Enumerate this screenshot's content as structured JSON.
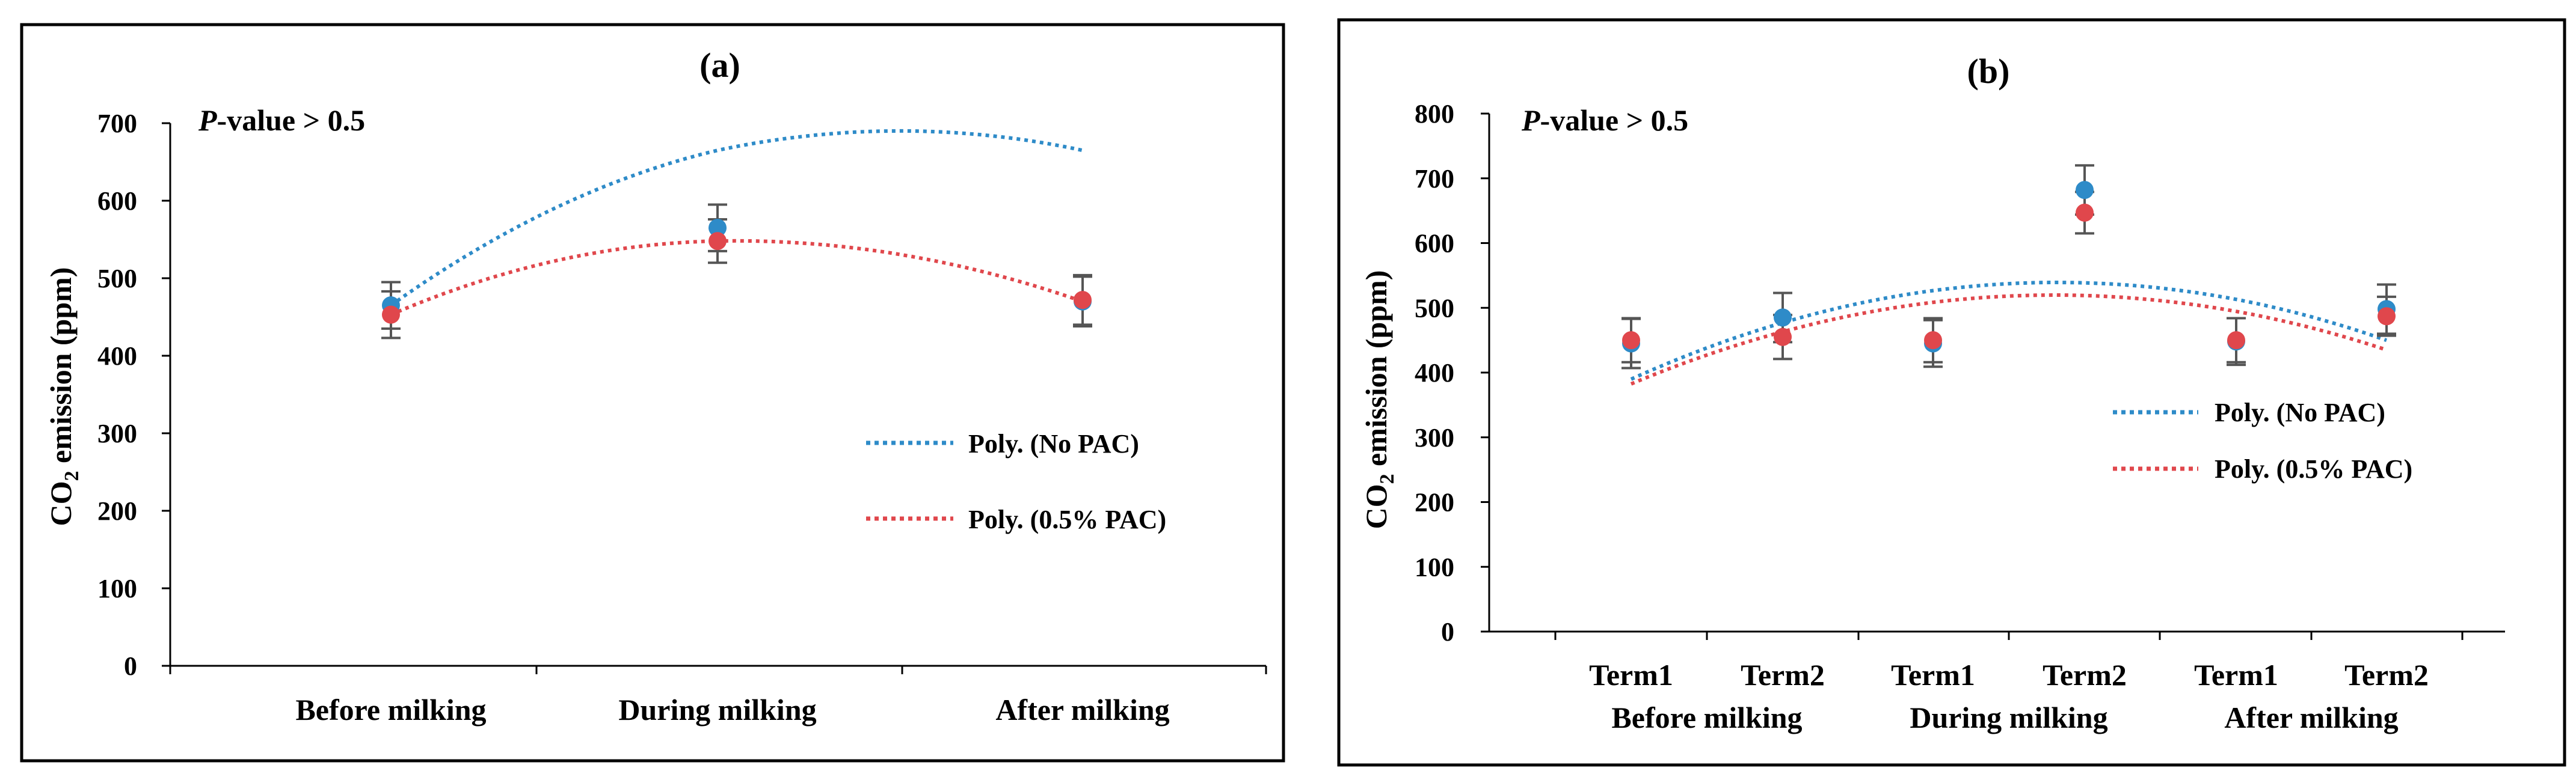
{
  "colors": {
    "no_pac": "#2E8BC8",
    "pac": "#E0474C",
    "error_bar": "#555555",
    "frame": "#000000"
  },
  "p_value": {
    "italic": "P",
    "rest": "-value > 0.5"
  },
  "chart_data": [
    {
      "type": "scatter",
      "panel_label": "(a)",
      "ylabel": {
        "main": "CO",
        "sub": "2",
        "rest": " emission (ppm)"
      },
      "ylim": [
        0,
        700
      ],
      "yticks": [
        "0",
        "100",
        "200",
        "300",
        "400",
        "500",
        "600",
        "700"
      ],
      "categories": [
        "Before milking",
        "During  milking",
        "After milking"
      ],
      "series": [
        {
          "name": "No PAC",
          "values": [
            465,
            565,
            470
          ],
          "errors": [
            30,
            30,
            32
          ]
        },
        {
          "name": "0.5% PAC",
          "values": [
            453,
            548,
            472
          ],
          "errors": [
            30,
            28,
            32
          ]
        }
      ],
      "trendlines": [
        {
          "label": "Poly. (No PAC)",
          "coeffs": [
            -100,
            500,
            65
          ]
        },
        {
          "label": "Poly. (0.5% PAC)",
          "coeffs": [
            -86.5,
            354.5,
            185
          ]
        }
      ],
      "legend_position": "right"
    },
    {
      "type": "scatter",
      "panel_label": "(b)",
      "ylabel": {
        "main": "CO",
        "sub": "2",
        "rest": " emission (ppm)"
      },
      "ylim": [
        0,
        800
      ],
      "yticks": [
        "0",
        "100",
        "200",
        "300",
        "400",
        "500",
        "600",
        "700",
        "800"
      ],
      "categories": [
        "Term1",
        "Term2",
        "Term1",
        "Term2",
        "Term1",
        "Term2"
      ],
      "groups": [
        {
          "first": "Before",
          "second": "milking"
        },
        {
          "first": "During",
          "second": "milking"
        },
        {
          "first": "After",
          "second": "milking"
        }
      ],
      "series": [
        {
          "name": "No PAC",
          "values": [
            445,
            485,
            445,
            682,
            448,
            498
          ],
          "errors": [
            38,
            38,
            36,
            38,
            36,
            38
          ]
        },
        {
          "name": "0.5% PAC",
          "values": [
            450,
            455,
            450,
            647,
            450,
            487
          ],
          "errors": [
            34,
            34,
            34,
            32,
            34,
            30
          ]
        }
      ],
      "trendlines": [
        {
          "label": "Poly. (No PAC)",
          "coeffs": [
            -18.8,
            143.6,
            265
          ]
        },
        {
          "label": "Poly. (0.5% PAC)",
          "coeffs": [
            -17.5,
            133,
            267
          ]
        }
      ],
      "legend_position": "right"
    }
  ]
}
